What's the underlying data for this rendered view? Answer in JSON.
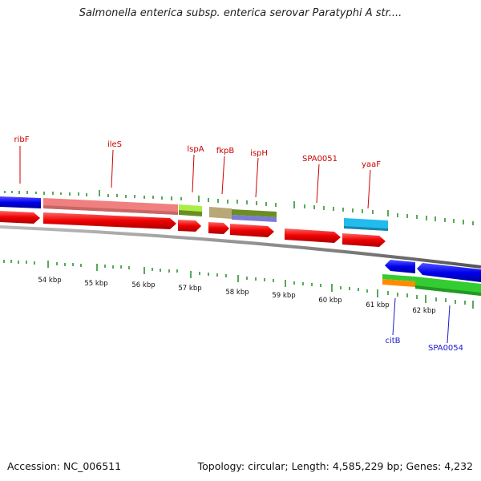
{
  "title": "Salmonella enterica subsp. enterica serovar Paratyphi A str....",
  "footer": {
    "accession": "Accession: NC_006511",
    "topology": "Topology: circular; Length: 4,585,229 bp; Genes: 4,232"
  },
  "kbp_labels": [
    "54 kbp",
    "55 kbp",
    "56 kbp",
    "57 kbp",
    "58 kbp",
    "59 kbp",
    "60 kbp",
    "61 kbp",
    "62 kbp"
  ],
  "genes_forward": [
    "ribF",
    "ileS",
    "lspA",
    "fkpB",
    "ispH",
    "SPA0051",
    "yaaF"
  ],
  "genes_reverse": [
    "citB",
    "SPA0054"
  ],
  "colors": {
    "cds": "#ff0000",
    "blue_feature": "#0000ee",
    "pink_feature": "#f08080",
    "tick": "#228b22",
    "backbone": "#808080",
    "label_forward": "#cc0000",
    "label_reverse": "#1a1acc"
  }
}
